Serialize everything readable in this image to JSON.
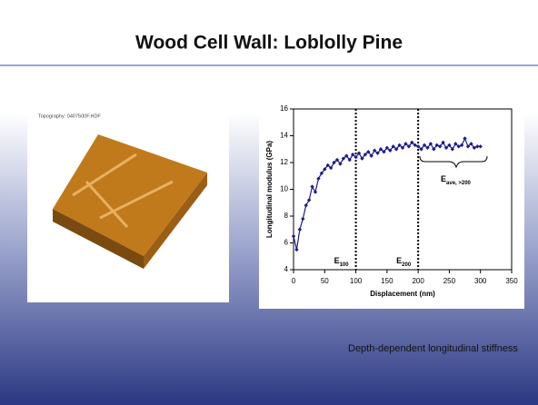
{
  "slide": {
    "title": "Wood Cell Wall: Loblolly Pine",
    "image_label": "Topography: 0407500F.HDF",
    "caption": "Depth-dependent longitudinal stiffness"
  },
  "chart_data": {
    "type": "line",
    "x_label": "Displacement (nm)",
    "y_label": "Longitudinal modulus (GPa)",
    "xlim": [
      0,
      350
    ],
    "xticks": [
      0,
      50,
      100,
      150,
      200,
      250,
      300,
      350
    ],
    "ylim": [
      4,
      16
    ],
    "yticks": [
      4,
      6,
      8,
      10,
      12,
      14,
      16
    ],
    "vlines": [
      100,
      200
    ],
    "annotations": [
      {
        "text": "E",
        "sub": "100"
      },
      {
        "text": "E",
        "sub": "200"
      },
      {
        "text": "E",
        "sub": "ave, >200"
      }
    ],
    "series": [
      {
        "color": "#1c1c8c",
        "x": [
          0,
          5,
          10,
          15,
          20,
          25,
          30,
          35,
          40,
          45,
          50,
          55,
          60,
          65,
          70,
          75,
          80,
          85,
          90,
          95,
          100,
          105,
          110,
          115,
          120,
          125,
          130,
          135,
          140,
          145,
          150,
          155,
          160,
          165,
          170,
          175,
          180,
          185,
          190,
          195,
          200,
          205,
          210,
          215,
          220,
          225,
          230,
          235,
          240,
          245,
          250,
          255,
          260,
          265,
          270,
          275,
          280,
          285,
          290,
          295,
          300
        ],
        "values": [
          6.5,
          5.5,
          7,
          7.8,
          8.8,
          9.2,
          10.2,
          9.8,
          10.8,
          11.2,
          11.5,
          11.8,
          11.6,
          12.0,
          12.2,
          11.9,
          12.3,
          12.5,
          12.2,
          12.6,
          12.4,
          12.7,
          12.3,
          12.6,
          12.8,
          12.5,
          12.9,
          12.7,
          13.0,
          12.8,
          13.1,
          12.9,
          13.2,
          13.0,
          13.3,
          13.1,
          13.4,
          13.2,
          13.5,
          13.3,
          13.2,
          13.0,
          13.3,
          13.1,
          13.4,
          13.0,
          13.3,
          13.2,
          13.5,
          13.1,
          13.3,
          13.0,
          13.4,
          13.2,
          13.3,
          13.8,
          13.2,
          13.4,
          13.1,
          13.2,
          13.2
        ]
      }
    ]
  }
}
